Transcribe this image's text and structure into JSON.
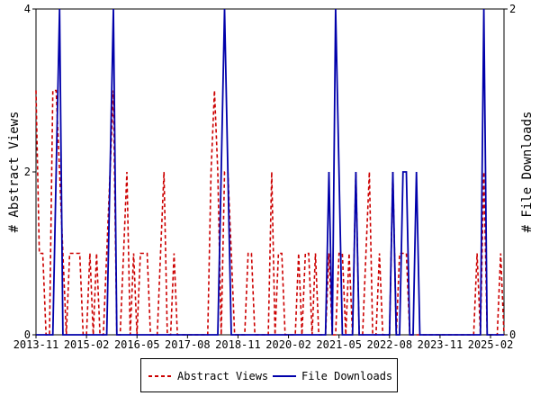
{
  "chart_data": {
    "type": "line",
    "y_left_label": "# Abstract Views",
    "y_right_label": "# File Downloads",
    "y_left_range": [
      0,
      4
    ],
    "y_right_range": [
      0,
      2
    ],
    "y_left_ticks": [
      "0",
      "2",
      "4"
    ],
    "y_right_ticks": [
      "0",
      "2"
    ],
    "x_range": [
      "2013-11",
      "2025-06"
    ],
    "x_tick_labels": [
      "2013-11",
      "2015-02",
      "2016-05",
      "2017-08",
      "2018-11",
      "2020-02",
      "2021-05",
      "2022-08",
      "2023-11",
      "2025-02"
    ],
    "grid": false,
    "legend_position": "bottom",
    "series": [
      {
        "name": "Abstract Views",
        "axis": "left",
        "color": "#cc0000",
        "style": "dashed",
        "points": [
          [
            "2013-11",
            3
          ],
          [
            "2013-12",
            1
          ],
          [
            "2014-01",
            1
          ],
          [
            "2014-02",
            0
          ],
          [
            "2014-03",
            0
          ],
          [
            "2014-04",
            3
          ],
          [
            "2014-05",
            3
          ],
          [
            "2014-06",
            2
          ],
          [
            "2014-07",
            1
          ],
          [
            "2014-08",
            0
          ],
          [
            "2014-09",
            1
          ],
          [
            "2014-10",
            1
          ],
          [
            "2014-11",
            1
          ],
          [
            "2014-12",
            1
          ],
          [
            "2015-01",
            0
          ],
          [
            "2015-02",
            0
          ],
          [
            "2015-03",
            1
          ],
          [
            "2015-04",
            0
          ],
          [
            "2015-05",
            1
          ],
          [
            "2015-06",
            0
          ],
          [
            "2015-07",
            0
          ],
          [
            "2015-08",
            1
          ],
          [
            "2015-09",
            2
          ],
          [
            "2015-10",
            3
          ],
          [
            "2015-11",
            0
          ],
          [
            "2015-12",
            0
          ],
          [
            "2016-01",
            1
          ],
          [
            "2016-02",
            2
          ],
          [
            "2016-03",
            0
          ],
          [
            "2016-04",
            1
          ],
          [
            "2016-05",
            0
          ],
          [
            "2016-06",
            1
          ],
          [
            "2016-07",
            1
          ],
          [
            "2016-08",
            1
          ],
          [
            "2016-09",
            0
          ],
          [
            "2016-10",
            0
          ],
          [
            "2016-11",
            0
          ],
          [
            "2016-12",
            1
          ],
          [
            "2017-01",
            2
          ],
          [
            "2017-02",
            0
          ],
          [
            "2017-03",
            0
          ],
          [
            "2017-04",
            1
          ],
          [
            "2017-05",
            0
          ],
          [
            "2017-06",
            0
          ],
          [
            "2017-07",
            0
          ],
          [
            "2017-08",
            0
          ],
          [
            "2017-09",
            0
          ],
          [
            "2017-10",
            0
          ],
          [
            "2017-11",
            0
          ],
          [
            "2017-12",
            0
          ],
          [
            "2018-01",
            0
          ],
          [
            "2018-02",
            0
          ],
          [
            "2018-03",
            2
          ],
          [
            "2018-04",
            3
          ],
          [
            "2018-05",
            2
          ],
          [
            "2018-06",
            0
          ],
          [
            "2018-07",
            2
          ],
          [
            "2018-08",
            2
          ],
          [
            "2018-09",
            1
          ],
          [
            "2018-10",
            0
          ],
          [
            "2018-11",
            0
          ],
          [
            "2018-12",
            0
          ],
          [
            "2019-01",
            0
          ],
          [
            "2019-02",
            1
          ],
          [
            "2019-03",
            1
          ],
          [
            "2019-04",
            0
          ],
          [
            "2019-05",
            0
          ],
          [
            "2019-06",
            0
          ],
          [
            "2019-07",
            0
          ],
          [
            "2019-08",
            0
          ],
          [
            "2019-09",
            2
          ],
          [
            "2019-10",
            0
          ],
          [
            "2019-11",
            1
          ],
          [
            "2019-12",
            1
          ],
          [
            "2020-01",
            0
          ],
          [
            "2020-02",
            0
          ],
          [
            "2020-03",
            0
          ],
          [
            "2020-04",
            0
          ],
          [
            "2020-05",
            1
          ],
          [
            "2020-06",
            0
          ],
          [
            "2020-07",
            1
          ],
          [
            "2020-08",
            1
          ],
          [
            "2020-09",
            0
          ],
          [
            "2020-10",
            1
          ],
          [
            "2020-11",
            0
          ],
          [
            "2020-12",
            0
          ],
          [
            "2021-01",
            0
          ],
          [
            "2021-02",
            1
          ],
          [
            "2021-03",
            0
          ],
          [
            "2021-04",
            0
          ],
          [
            "2021-05",
            1
          ],
          [
            "2021-06",
            1
          ],
          [
            "2021-07",
            0
          ],
          [
            "2021-08",
            1
          ],
          [
            "2021-09",
            0
          ],
          [
            "2021-10",
            2
          ],
          [
            "2021-11",
            0
          ],
          [
            "2021-12",
            0
          ],
          [
            "2022-01",
            1
          ],
          [
            "2022-02",
            2
          ],
          [
            "2022-03",
            0
          ],
          [
            "2022-04",
            0
          ],
          [
            "2022-05",
            1
          ],
          [
            "2022-06",
            0
          ],
          [
            "2022-07",
            0
          ],
          [
            "2022-08",
            0
          ],
          [
            "2022-09",
            2
          ],
          [
            "2022-10",
            0
          ],
          [
            "2022-11",
            1
          ],
          [
            "2022-12",
            1
          ],
          [
            "2023-01",
            1
          ],
          [
            "2023-02",
            0
          ],
          [
            "2023-03",
            0
          ],
          [
            "2023-04",
            0
          ],
          [
            "2023-05",
            0
          ],
          [
            "2023-06",
            0
          ],
          [
            "2023-07",
            0
          ],
          [
            "2023-08",
            0
          ],
          [
            "2023-09",
            0
          ],
          [
            "2023-10",
            0
          ],
          [
            "2023-11",
            0
          ],
          [
            "2023-12",
            0
          ],
          [
            "2024-01",
            0
          ],
          [
            "2024-02",
            0
          ],
          [
            "2024-03",
            0
          ],
          [
            "2024-04",
            0
          ],
          [
            "2024-05",
            0
          ],
          [
            "2024-06",
            0
          ],
          [
            "2024-07",
            0
          ],
          [
            "2024-08",
            0
          ],
          [
            "2024-09",
            0
          ],
          [
            "2024-10",
            1
          ],
          [
            "2024-11",
            0
          ],
          [
            "2024-12",
            2
          ],
          [
            "2025-01",
            0
          ],
          [
            "2025-02",
            0
          ],
          [
            "2025-03",
            0
          ],
          [
            "2025-04",
            0
          ],
          [
            "2025-05",
            1
          ],
          [
            "2025-06",
            0
          ]
        ]
      },
      {
        "name": "File Downloads",
        "axis": "right",
        "color": "#0000aa",
        "style": "solid",
        "points": [
          [
            "2013-11",
            0
          ],
          [
            "2013-12",
            0
          ],
          [
            "2014-01",
            0
          ],
          [
            "2014-02",
            0
          ],
          [
            "2014-03",
            0
          ],
          [
            "2014-04",
            0
          ],
          [
            "2014-05",
            1
          ],
          [
            "2014-06",
            2
          ],
          [
            "2014-07",
            0
          ],
          [
            "2014-08",
            0
          ],
          [
            "2014-09",
            0
          ],
          [
            "2014-10",
            0
          ],
          [
            "2014-11",
            0
          ],
          [
            "2014-12",
            0
          ],
          [
            "2015-01",
            0
          ],
          [
            "2015-02",
            0
          ],
          [
            "2015-03",
            0
          ],
          [
            "2015-04",
            0
          ],
          [
            "2015-05",
            0
          ],
          [
            "2015-06",
            0
          ],
          [
            "2015-07",
            0
          ],
          [
            "2015-08",
            0
          ],
          [
            "2015-09",
            1
          ],
          [
            "2015-10",
            2
          ],
          [
            "2015-11",
            0
          ],
          [
            "2015-12",
            0
          ],
          [
            "2016-01",
            0
          ],
          [
            "2016-02",
            0
          ],
          [
            "2016-03",
            0
          ],
          [
            "2016-04",
            0
          ],
          [
            "2016-05",
            0
          ],
          [
            "2016-06",
            0
          ],
          [
            "2016-07",
            0
          ],
          [
            "2016-08",
            0
          ],
          [
            "2016-09",
            0
          ],
          [
            "2016-10",
            0
          ],
          [
            "2016-11",
            0
          ],
          [
            "2016-12",
            0
          ],
          [
            "2017-01",
            0
          ],
          [
            "2017-02",
            0
          ],
          [
            "2017-03",
            0
          ],
          [
            "2017-04",
            0
          ],
          [
            "2017-05",
            0
          ],
          [
            "2017-06",
            0
          ],
          [
            "2017-07",
            0
          ],
          [
            "2017-08",
            0
          ],
          [
            "2017-09",
            0
          ],
          [
            "2017-10",
            0
          ],
          [
            "2017-11",
            0
          ],
          [
            "2017-12",
            0
          ],
          [
            "2018-01",
            0
          ],
          [
            "2018-02",
            0
          ],
          [
            "2018-03",
            0
          ],
          [
            "2018-04",
            0
          ],
          [
            "2018-05",
            0
          ],
          [
            "2018-06",
            1
          ],
          [
            "2018-07",
            2
          ],
          [
            "2018-08",
            1
          ],
          [
            "2018-09",
            0
          ],
          [
            "2018-10",
            0
          ],
          [
            "2018-11",
            0
          ],
          [
            "2018-12",
            0
          ],
          [
            "2019-01",
            0
          ],
          [
            "2019-02",
            0
          ],
          [
            "2019-03",
            0
          ],
          [
            "2019-04",
            0
          ],
          [
            "2019-05",
            0
          ],
          [
            "2019-06",
            0
          ],
          [
            "2019-07",
            0
          ],
          [
            "2019-08",
            0
          ],
          [
            "2019-09",
            0
          ],
          [
            "2019-10",
            0
          ],
          [
            "2019-11",
            0
          ],
          [
            "2019-12",
            0
          ],
          [
            "2020-01",
            0
          ],
          [
            "2020-02",
            0
          ],
          [
            "2020-03",
            0
          ],
          [
            "2020-04",
            0
          ],
          [
            "2020-05",
            0
          ],
          [
            "2020-06",
            0
          ],
          [
            "2020-07",
            0
          ],
          [
            "2020-08",
            0
          ],
          [
            "2020-09",
            0
          ],
          [
            "2020-10",
            0
          ],
          [
            "2020-11",
            0
          ],
          [
            "2020-12",
            0
          ],
          [
            "2021-01",
            0
          ],
          [
            "2021-02",
            1
          ],
          [
            "2021-03",
            0
          ],
          [
            "2021-04",
            2
          ],
          [
            "2021-05",
            1
          ],
          [
            "2021-06",
            0
          ],
          [
            "2021-07",
            0
          ],
          [
            "2021-08",
            0
          ],
          [
            "2021-09",
            0
          ],
          [
            "2021-10",
            1
          ],
          [
            "2021-11",
            0
          ],
          [
            "2021-12",
            0
          ],
          [
            "2022-01",
            0
          ],
          [
            "2022-02",
            0
          ],
          [
            "2022-03",
            0
          ],
          [
            "2022-04",
            0
          ],
          [
            "2022-05",
            0
          ],
          [
            "2022-06",
            0
          ],
          [
            "2022-07",
            0
          ],
          [
            "2022-08",
            0
          ],
          [
            "2022-09",
            1
          ],
          [
            "2022-10",
            0
          ],
          [
            "2022-11",
            0
          ],
          [
            "2022-12",
            1
          ],
          [
            "2023-01",
            1
          ],
          [
            "2023-02",
            0
          ],
          [
            "2023-03",
            0
          ],
          [
            "2023-04",
            1
          ],
          [
            "2023-05",
            0
          ],
          [
            "2023-06",
            0
          ],
          [
            "2023-07",
            0
          ],
          [
            "2023-08",
            0
          ],
          [
            "2023-09",
            0
          ],
          [
            "2023-10",
            0
          ],
          [
            "2023-11",
            0
          ],
          [
            "2023-12",
            0
          ],
          [
            "2024-01",
            0
          ],
          [
            "2024-02",
            0
          ],
          [
            "2024-03",
            0
          ],
          [
            "2024-04",
            0
          ],
          [
            "2024-05",
            0
          ],
          [
            "2024-06",
            0
          ],
          [
            "2024-07",
            0
          ],
          [
            "2024-08",
            0
          ],
          [
            "2024-09",
            0
          ],
          [
            "2024-10",
            0
          ],
          [
            "2024-11",
            0
          ],
          [
            "2024-12",
            2
          ],
          [
            "2025-01",
            0
          ],
          [
            "2025-02",
            0
          ],
          [
            "2025-03",
            0
          ],
          [
            "2025-04",
            0
          ],
          [
            "2025-05",
            0
          ],
          [
            "2025-06",
            0
          ]
        ]
      }
    ]
  }
}
